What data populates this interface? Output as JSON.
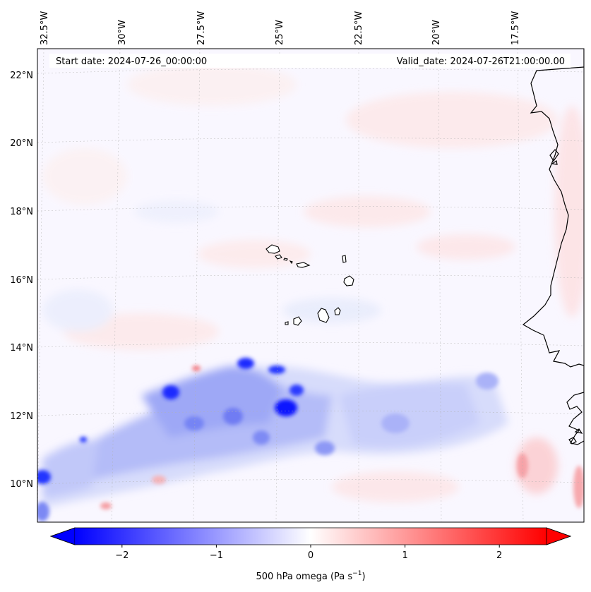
{
  "header": {
    "start_date": "Start date: 2024-07-26_00:00:00",
    "valid_date": "Valid_date: 2024-07-26T21:00:00.00"
  },
  "longitude_labels": [
    "32.5°W",
    "30°W",
    "27.5°W",
    "25°W",
    "22.5°W",
    "20°W",
    "17.5°W"
  ],
  "latitude_labels": [
    "22°N",
    "20°N",
    "18°N",
    "16°N",
    "14°N",
    "12°N",
    "10°N"
  ],
  "colorbar": {
    "ticks": [
      "−2",
      "−1",
      "0",
      "1",
      "2"
    ],
    "tick_values": [
      -2,
      -1,
      0,
      1,
      2
    ],
    "range": [
      -2.5,
      2.5
    ],
    "label": "500 hPa omega (Pa s",
    "label_superscript": "−1",
    "label_close": ")",
    "negative_color": "#0000ff",
    "zero_color": "#ffffff",
    "positive_color": "#ff0000"
  },
  "colors": {
    "coastline": "#000000",
    "gridline": "#b0b0b0",
    "background": "#ffffff"
  }
}
